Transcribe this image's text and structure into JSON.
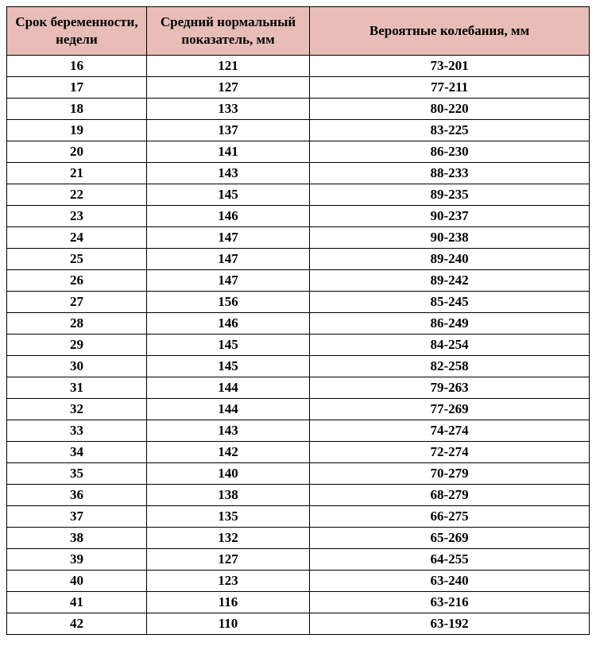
{
  "table": {
    "columns": [
      "Срок беременности, недели",
      "Средний нормальный показатель, мм",
      "Вероятные колебания, мм"
    ],
    "rows": [
      [
        "16",
        "121",
        "73-201"
      ],
      [
        "17",
        "127",
        "77-211"
      ],
      [
        "18",
        "133",
        "80-220"
      ],
      [
        "19",
        "137",
        "83-225"
      ],
      [
        "20",
        "141",
        "86-230"
      ],
      [
        "21",
        "143",
        "88-233"
      ],
      [
        "22",
        "145",
        "89-235"
      ],
      [
        "23",
        "146",
        "90-237"
      ],
      [
        "24",
        "147",
        "90-238"
      ],
      [
        "25",
        "147",
        "89-240"
      ],
      [
        "26",
        "147",
        "89-242"
      ],
      [
        "27",
        "156",
        "85-245"
      ],
      [
        "28",
        "146",
        "86-249"
      ],
      [
        "29",
        "145",
        "84-254"
      ],
      [
        "30",
        "145",
        "82-258"
      ],
      [
        "31",
        "144",
        "79-263"
      ],
      [
        "32",
        "144",
        "77-269"
      ],
      [
        "33",
        "143",
        "74-274"
      ],
      [
        "34",
        "142",
        "72-274"
      ],
      [
        "35",
        "140",
        "70-279"
      ],
      [
        "36",
        "138",
        "68-279"
      ],
      [
        "37",
        "135",
        "66-275"
      ],
      [
        "38",
        "132",
        "65-269"
      ],
      [
        "39",
        "127",
        "64-255"
      ],
      [
        "40",
        "123",
        "63-240"
      ],
      [
        "41",
        "116",
        "63-216"
      ],
      [
        "42",
        "110",
        "63-192"
      ]
    ],
    "header_bg": "#e8bdb7",
    "border_color": "#000000",
    "font_family": "Georgia, 'Times New Roman', serif",
    "header_fontsize": 17,
    "cell_fontsize": 17,
    "column_widths": [
      "24%",
      "28%",
      "48%"
    ]
  }
}
